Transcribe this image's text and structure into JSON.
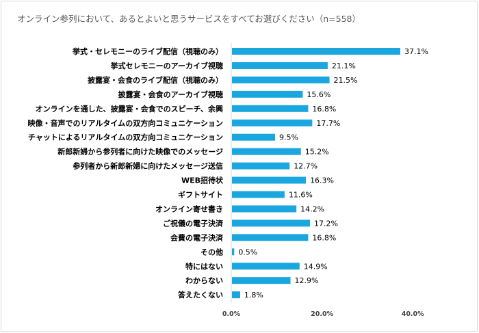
{
  "chart_data": {
    "type": "bar",
    "orientation": "horizontal",
    "title": "オンライン参列において、あるとよいと思うサービスをすべてお選びください（n=558）",
    "xlabel": "",
    "ylabel": "",
    "categories": [
      "挙式・セレモニーのライブ配信（視聴のみ）",
      "挙式セレモニーのアーカイブ視聴",
      "披露宴・会食のライブ配信（視聴のみ）",
      "披露宴・会食のアーカイブ視聴",
      "オンラインを通した、披露宴・会食でのスピーチ、余興",
      "映像・音声でのリアルタイムの双方向コミュニケーション",
      "チャットによるリアルタイムの双方向コミュニケーション",
      "新郎新婦から参列者に向けた映像でのメッセージ",
      "参列者から新郎新婦に向けたメッセージ送信",
      "WEB招待状",
      "ギフトサイト",
      "オンライン寄せ書き",
      "ご祝儀の電子決済",
      "会費の電子決済",
      "その他",
      "特にはない",
      "わからない",
      "答えたくない"
    ],
    "values": [
      37.1,
      21.1,
      21.5,
      15.6,
      16.8,
      17.7,
      9.5,
      15.2,
      12.7,
      16.3,
      11.6,
      14.2,
      17.2,
      16.8,
      0.5,
      14.9,
      12.9,
      1.8
    ],
    "value_labels": [
      "37.1%",
      "21.1%",
      "21.5%",
      "15.6%",
      "16.8%",
      "17.7%",
      "9.5%",
      "15.2%",
      "12.7%",
      "16.3%",
      "11.6%",
      "14.2%",
      "17.2%",
      "16.8%",
      "0.5%",
      "14.9%",
      "12.9%",
      "1.8%"
    ],
    "xlim": [
      0,
      50
    ],
    "xticks": [
      0,
      20,
      40
    ],
    "xtick_labels": [
      "0.0%",
      "20.0%",
      "40.0%"
    ],
    "grid": false,
    "bar_color": "#1aa7e0"
  }
}
